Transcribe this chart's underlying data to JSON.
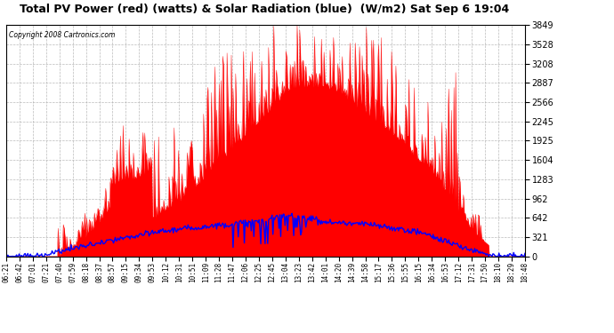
{
  "title": "Total PV Power (red) (watts) & Solar Radiation (blue)  (W/m2) Sat Sep 6 19:04",
  "copyright": "Copyright 2008 Cartronics.com",
  "bg_color": "#ffffff",
  "plot_bg_color": "#ffffff",
  "red_color": "#ff0000",
  "blue_color": "#0000ff",
  "ylim": [
    0.0,
    3849.2
  ],
  "yticks": [
    0.0,
    320.8,
    641.5,
    962.3,
    1283.1,
    1603.8,
    1924.6,
    2245.4,
    2566.1,
    2886.9,
    3207.7,
    3528.4,
    3849.2
  ],
  "xtick_labels": [
    "06:21",
    "06:42",
    "07:01",
    "07:21",
    "07:40",
    "07:59",
    "08:18",
    "08:37",
    "08:57",
    "09:15",
    "09:34",
    "09:53",
    "10:12",
    "10:31",
    "10:51",
    "11:09",
    "11:28",
    "11:47",
    "12:06",
    "12:25",
    "12:45",
    "13:04",
    "13:23",
    "13:42",
    "14:01",
    "14:20",
    "14:39",
    "14:58",
    "15:17",
    "15:36",
    "15:55",
    "16:15",
    "16:34",
    "16:53",
    "17:12",
    "17:31",
    "17:50",
    "18:10",
    "18:29",
    "18:48"
  ],
  "n_points": 600
}
